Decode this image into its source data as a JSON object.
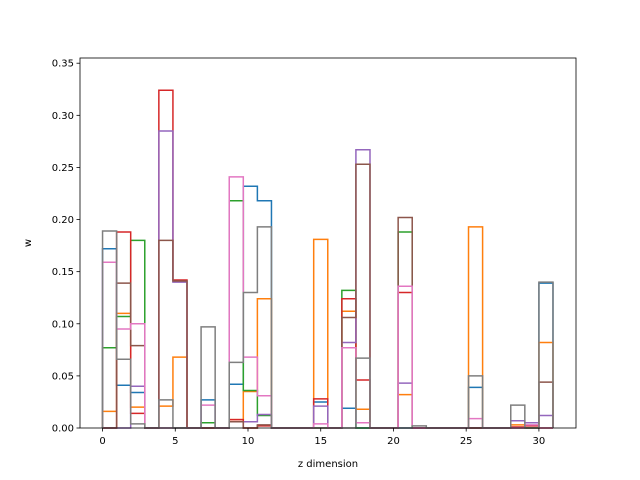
{
  "chart_data": {
    "type": "step-histogram",
    "xlabel": "z dimension",
    "ylabel": "w",
    "xlim": [
      -1.55,
      32.55
    ],
    "ylim": [
      0,
      0.355
    ],
    "xticks": [
      0,
      5,
      10,
      15,
      20,
      25,
      30
    ],
    "xtick_labels": [
      "0",
      "5",
      "10",
      "15",
      "20",
      "25",
      "30"
    ],
    "yticks": [
      0.0,
      0.05,
      0.1,
      0.15,
      0.2,
      0.25,
      0.3,
      0.35
    ],
    "ytick_labels": [
      "0.00",
      "0.05",
      "0.10",
      "0.15",
      "0.20",
      "0.25",
      "0.30",
      "0.35"
    ],
    "bin_edges": [
      0.0,
      0.968,
      1.935,
      2.903,
      3.871,
      4.839,
      5.806,
      6.774,
      7.742,
      8.71,
      9.677,
      10.645,
      11.613,
      12.581,
      13.548,
      14.516,
      15.484,
      16.452,
      17.419,
      18.387,
      19.355,
      20.323,
      21.29,
      22.258,
      23.226,
      24.194,
      25.161,
      26.129,
      27.097,
      28.065,
      29.032,
      30.0,
      30.968
    ],
    "series": [
      {
        "color": "#1f77b4",
        "values": [
          0.172,
          0.041,
          0.034,
          0,
          0,
          0,
          0,
          0.027,
          0,
          0.042,
          0.232,
          0.218,
          0,
          0,
          0,
          0.025,
          0,
          0.019,
          0,
          0,
          0,
          0,
          0,
          0,
          0,
          0,
          0.039,
          0,
          0,
          0,
          0,
          0.139
        ]
      },
      {
        "color": "#ff7f0e",
        "values": [
          0.016,
          0.11,
          0.02,
          0,
          0.021,
          0.068,
          0,
          0,
          0,
          0.008,
          0.035,
          0.124,
          0,
          0,
          0,
          0.181,
          0,
          0.112,
          0.018,
          0,
          0,
          0.032,
          0,
          0,
          0,
          0,
          0.193,
          0,
          0,
          0.003,
          0,
          0.082
        ]
      },
      {
        "color": "#2ca02c",
        "values": [
          0.077,
          0.107,
          0.18,
          0,
          0,
          0,
          0,
          0.005,
          0,
          0.218,
          0.036,
          0.012,
          0,
          0,
          0,
          0,
          0,
          0.132,
          0,
          0,
          0,
          0.188,
          0,
          0,
          0,
          0,
          0,
          0,
          0,
          0,
          0,
          0
        ]
      },
      {
        "color": "#d62728",
        "values": [
          0,
          0.188,
          0.014,
          0,
          0.324,
          0.142,
          0,
          0,
          0,
          0.008,
          0,
          0.002,
          0,
          0,
          0,
          0.028,
          0,
          0.124,
          0.046,
          0,
          0,
          0.13,
          0,
          0,
          0,
          0,
          0,
          0,
          0,
          0.001,
          0.002,
          0
        ]
      },
      {
        "color": "#9467bd",
        "values": [
          0,
          0,
          0.04,
          0,
          0.285,
          0.14,
          0,
          0,
          0,
          0.006,
          0.006,
          0.013,
          0,
          0,
          0,
          0.021,
          0,
          0.082,
          0.267,
          0,
          0,
          0.043,
          0,
          0,
          0,
          0,
          0,
          0,
          0,
          0.007,
          0.005,
          0.012
        ]
      },
      {
        "color": "#8c564b",
        "values": [
          0,
          0.139,
          0.079,
          0,
          0.18,
          0.141,
          0,
          0,
          0,
          0.006,
          0,
          0.003,
          0,
          0,
          0,
          0,
          0,
          0.106,
          0.253,
          0,
          0,
          0.202,
          0,
          0,
          0,
          0,
          0,
          0,
          0,
          0,
          0,
          0.044
        ]
      },
      {
        "color": "#e377c2",
        "values": [
          0.159,
          0.095,
          0.1,
          0,
          0,
          0,
          0,
          0.022,
          0,
          0.241,
          0.068,
          0.031,
          0,
          0,
          0,
          0.004,
          0,
          0.077,
          0.005,
          0,
          0,
          0.136,
          0,
          0,
          0,
          0,
          0.009,
          0,
          0,
          0,
          0.003,
          0
        ]
      },
      {
        "color": "#7f7f7f",
        "values": [
          0.189,
          0.066,
          0.004,
          0,
          0.027,
          0,
          0,
          0.097,
          0,
          0.063,
          0.13,
          0.193,
          0,
          0,
          0,
          0,
          0,
          0,
          0.067,
          0,
          0,
          0,
          0.002,
          0,
          0,
          0,
          0.05,
          0,
          0,
          0.022,
          0,
          0.14
        ]
      }
    ]
  }
}
